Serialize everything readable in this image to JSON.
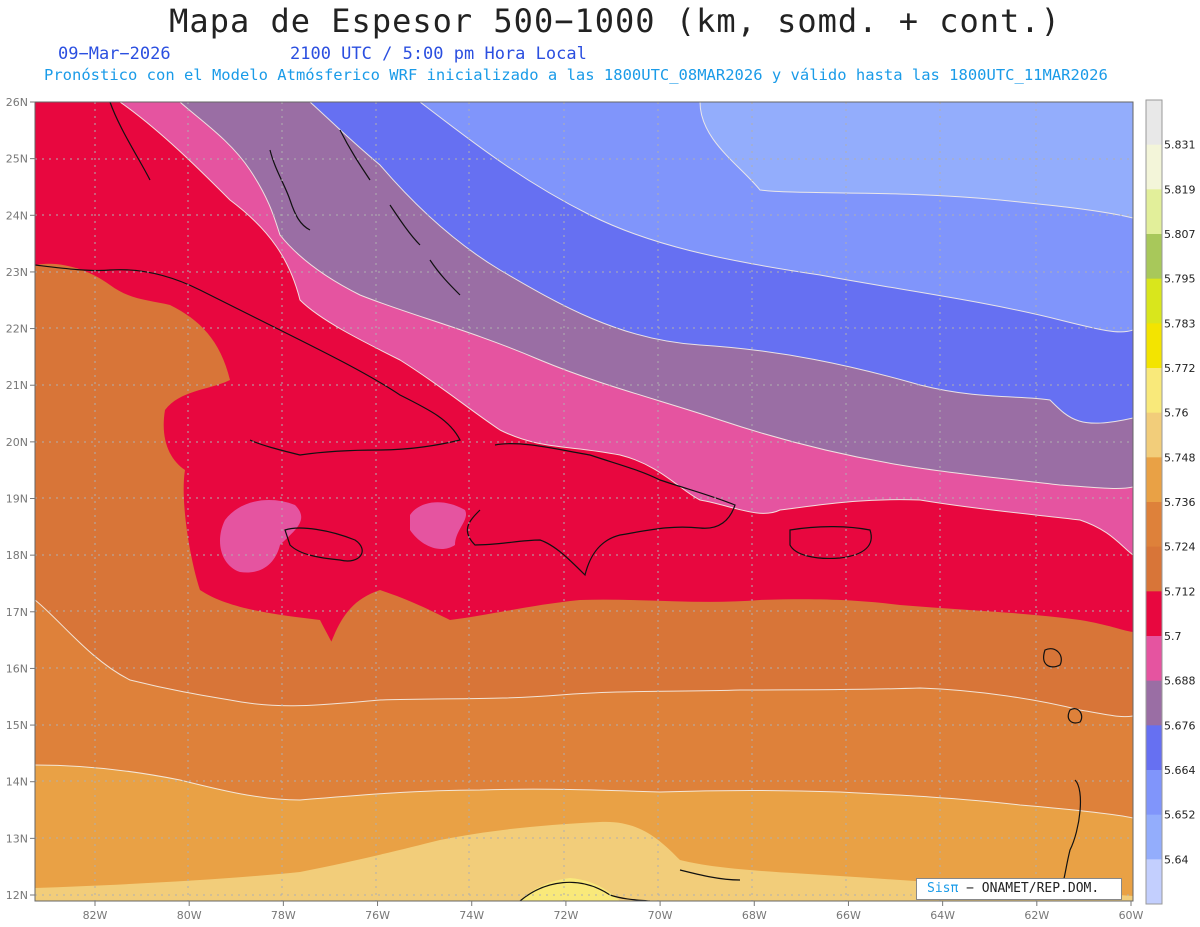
{
  "header": {
    "title": "Mapa de Espesor 500−1000 (km, somd. + cont.)",
    "date": "09−Mar−2026",
    "time": "2100 UTC / 5:00 pm Hora Local",
    "subtitle": "Pronóstico con el Modelo Atmósferico WRF inicializado a las 1800UTC_08MAR2026 y válido hasta las  1800UTC_11MAR2026"
  },
  "map": {
    "lat_labels": [
      "12N",
      "13N",
      "14N",
      "15N",
      "16N",
      "17N",
      "18N",
      "19N",
      "20N",
      "21N",
      "22N",
      "23N",
      "24N",
      "25N",
      "26N"
    ],
    "lon_labels": [
      "82W",
      "80W",
      "78W",
      "76W",
      "74W",
      "72W",
      "70W",
      "68W",
      "66W",
      "64W",
      "62W",
      "60W"
    ],
    "bands": [
      {
        "value": "5.748",
        "color": "#f2cd7a"
      },
      {
        "value": "5.736",
        "color": "#e9a145"
      },
      {
        "value": "5.724",
        "color": "#de813a"
      },
      {
        "value": "5.712",
        "color": "#d87538"
      },
      {
        "value": "5.7",
        "color": "#e8073f"
      },
      {
        "value": "5.688",
        "color": "#e554a0"
      },
      {
        "value": "5.676",
        "color": "#9a6ea4"
      },
      {
        "value": "5.664",
        "color": "#6670f2"
      },
      {
        "value": "5.652",
        "color": "#8095fb"
      },
      {
        "value": "5.64",
        "color": "#93adfc"
      }
    ]
  },
  "colorbar": {
    "levels": [
      "5.831",
      "5.819",
      "5.807",
      "5.795",
      "5.783",
      "5.772",
      "5.76",
      "5.748",
      "5.736",
      "5.724",
      "5.712",
      "5.7",
      "5.688",
      "5.676",
      "5.664",
      "5.652",
      "5.64"
    ],
    "colors": [
      "#e8e8e8",
      "#f3f5d9",
      "#e2ef9a",
      "#a8c85a",
      "#d9e61c",
      "#f3e400",
      "#f9e97a",
      "#f2cd7a",
      "#e9a145",
      "#de813a",
      "#d87538",
      "#e8073f",
      "#e554a0",
      "#9a6ea4",
      "#6670f2",
      "#8095fb",
      "#93adfc",
      "#c3cffe"
    ]
  },
  "credit": {
    "brand": "Sisπ",
    "text": " − ONAMET/REP.DOM."
  }
}
